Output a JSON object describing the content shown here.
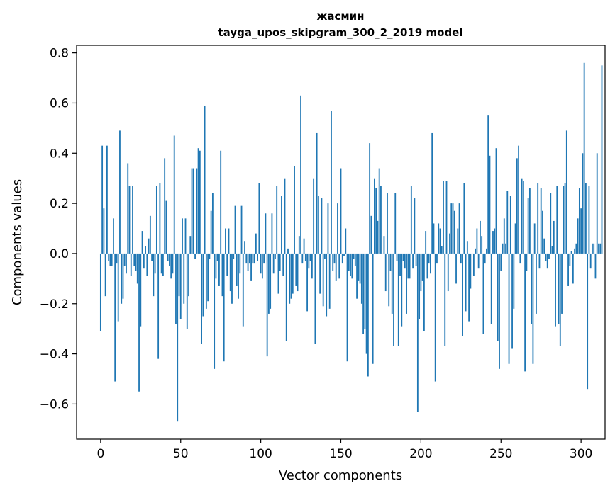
{
  "chart_data": {
    "type": "bar",
    "title": "жасмин",
    "subtitle": "tayga_upos_skipgram_300_2_2019 model",
    "xlabel": "Vector components",
    "ylabel": "Components values",
    "xlim": [
      -15,
      315
    ],
    "ylim": [
      -0.74,
      0.83
    ],
    "xticks": [
      0,
      50,
      100,
      150,
      200,
      250,
      300
    ],
    "xtick_labels": [
      "0",
      "50",
      "100",
      "150",
      "200",
      "250",
      "300"
    ],
    "yticks": [
      -0.6,
      -0.4,
      -0.2,
      0.0,
      0.2,
      0.4,
      0.6,
      0.8
    ],
    "ytick_labels": [
      "−0.6",
      "−0.4",
      "−0.2",
      "0.0",
      "0.2",
      "0.4",
      "0.6",
      "0.8"
    ],
    "grid": false,
    "bar_color": "#1f77b4",
    "values": [
      -0.31,
      0.43,
      0.18,
      -0.17,
      0.43,
      -0.03,
      -0.05,
      -0.05,
      0.14,
      -0.51,
      -0.04,
      -0.27,
      0.49,
      -0.2,
      -0.18,
      -0.05,
      -0.08,
      0.36,
      0.27,
      -0.09,
      0.27,
      -0.05,
      -0.07,
      -0.12,
      -0.55,
      -0.29,
      0.09,
      -0.06,
      0.03,
      -0.09,
      0.06,
      0.15,
      -0.03,
      -0.17,
      -0.08,
      0.27,
      -0.42,
      0.28,
      -0.08,
      -0.09,
      0.38,
      0.21,
      -0.03,
      -0.05,
      -0.1,
      -0.08,
      0.47,
      -0.28,
      -0.67,
      -0.17,
      -0.26,
      0.14,
      -0.2,
      0.14,
      -0.3,
      -0.17,
      0.07,
      0.34,
      0.34,
      -0.02,
      0.34,
      0.42,
      0.41,
      -0.36,
      -0.25,
      0.59,
      -0.22,
      -0.19,
      -0.02,
      0.17,
      0.24,
      -0.46,
      -0.1,
      -0.03,
      -0.13,
      0.41,
      -0.17,
      -0.43,
      0.1,
      -0.09,
      0.1,
      -0.15,
      -0.2,
      -0.02,
      0.19,
      -0.13,
      -0.18,
      -0.08,
      0.19,
      -0.29,
      0.05,
      -0.04,
      -0.07,
      -0.04,
      -0.11,
      -0.04,
      -0.04,
      0.08,
      -0.03,
      0.28,
      -0.08,
      -0.1,
      -0.04,
      0.16,
      -0.41,
      -0.24,
      -0.22,
      0.16,
      -0.08,
      -0.02,
      0.27,
      -0.16,
      -0.07,
      0.23,
      -0.09,
      0.3,
      -0.35,
      0.02,
      -0.2,
      -0.18,
      -0.16,
      0.35,
      -0.13,
      -0.15,
      0.07,
      0.63,
      -0.04,
      0.06,
      -0.03,
      -0.23,
      -0.06,
      -0.03,
      -0.1,
      0.3,
      -0.36,
      0.48,
      0.23,
      -0.16,
      0.22,
      -0.21,
      -0.02,
      -0.25,
      0.2,
      -0.22,
      0.57,
      -0.07,
      -0.04,
      -0.11,
      0.2,
      -0.1,
      0.34,
      -0.04,
      -0.01,
      0.1,
      -0.43,
      -0.07,
      -0.09,
      -0.1,
      -0.02,
      -0.05,
      -0.18,
      -0.11,
      -0.12,
      -0.2,
      -0.32,
      -0.3,
      -0.4,
      -0.49,
      0.44,
      0.15,
      -0.44,
      0.3,
      0.26,
      0.13,
      0.34,
      0.27,
      0.0,
      0.07,
      -0.15,
      0.24,
      -0.21,
      -0.07,
      -0.24,
      -0.37,
      0.24,
      -0.03,
      -0.37,
      -0.09,
      -0.29,
      -0.03,
      -0.06,
      -0.24,
      -0.1,
      -0.1,
      0.27,
      -0.06,
      0.22,
      -0.05,
      -0.63,
      -0.26,
      -0.15,
      -0.11,
      -0.31,
      0.09,
      -0.1,
      -0.04,
      -0.08,
      0.48,
      0.12,
      -0.51,
      -0.04,
      0.12,
      0.1,
      0.03,
      0.29,
      -0.37,
      0.29,
      -0.15,
      0.08,
      0.2,
      0.2,
      0.17,
      -0.12,
      0.1,
      0.2,
      -0.04,
      -0.33,
      0.28,
      -0.23,
      0.05,
      -0.27,
      -0.14,
      0.0,
      -0.09,
      0.02,
      0.1,
      -0.06,
      0.13,
      0.07,
      -0.32,
      -0.04,
      0.02,
      0.55,
      0.39,
      -0.28,
      0.09,
      0.1,
      0.42,
      -0.35,
      -0.46,
      -0.07,
      0.04,
      0.14,
      0.04,
      0.25,
      -0.44,
      0.23,
      -0.38,
      -0.22,
      0.12,
      0.38,
      0.43,
      -0.04,
      0.3,
      0.29,
      -0.47,
      -0.07,
      0.22,
      0.26,
      -0.28,
      -0.44,
      0.12,
      -0.24,
      0.28,
      -0.06,
      0.26,
      0.17,
      0.06,
      -0.03,
      -0.06,
      -0.02,
      0.24,
      0.03,
      0.13,
      -0.29,
      0.27,
      -0.28,
      -0.37,
      -0.24,
      0.27,
      0.28,
      0.49,
      -0.13,
      -0.05,
      0.01,
      -0.12,
      0.02,
      0.04,
      0.14,
      0.26,
      0.18,
      0.4,
      0.76,
      0.28,
      -0.54,
      0.27,
      -0.06,
      0.04,
      0.04,
      -0.1,
      0.4,
      0.04,
      0.04,
      0.75
    ]
  }
}
